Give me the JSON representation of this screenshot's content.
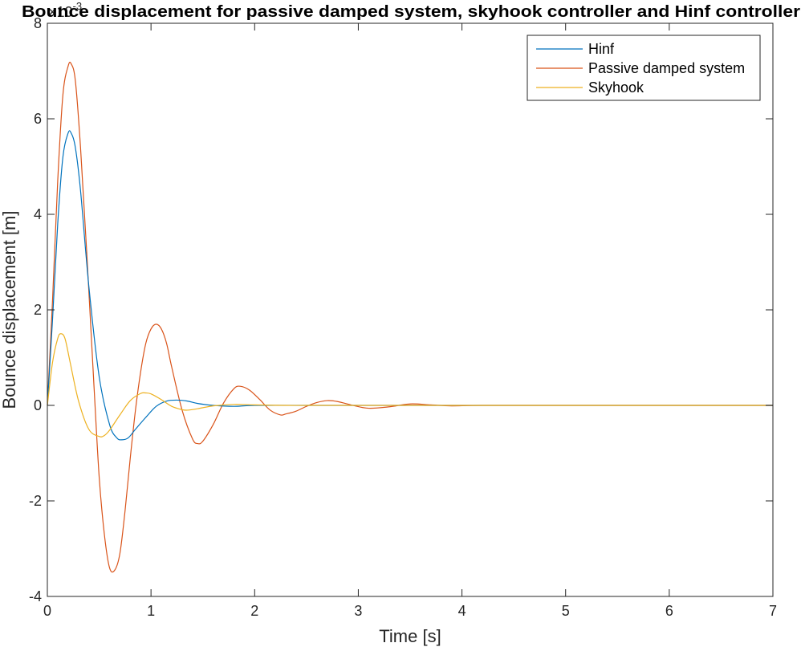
{
  "chart_data": {
    "type": "line",
    "title": "Bounce displacement for passive damped system, skyhook controller and Hinf controller",
    "xlabel": "Time [s]",
    "ylabel": "Bounce displacement [m]",
    "exponent_label": "×10",
    "exponent_power": "-3",
    "xlim": [
      0,
      7
    ],
    "ylim": [
      -0.004,
      0.008
    ],
    "x_ticks": [
      "0",
      "1",
      "2",
      "3",
      "4",
      "5",
      "6",
      "7"
    ],
    "y_ticks": [
      "-4",
      "-2",
      "0",
      "2",
      "4",
      "6",
      "8"
    ],
    "grid": false,
    "legend_position": "top-right",
    "series": [
      {
        "name": "Hinf",
        "color": "#0072BD",
        "x": [
          0,
          0.05,
          0.1,
          0.15,
          0.2,
          0.23,
          0.27,
          0.32,
          0.4,
          0.5,
          0.6,
          0.67,
          0.72,
          0.78,
          0.85,
          0.95,
          1.05,
          1.15,
          1.25,
          1.35,
          1.45,
          1.6,
          1.8,
          2.0,
          2.5,
          3.0,
          7.0
        ],
        "y": [
          0,
          0.0018,
          0.0038,
          0.0052,
          0.0057,
          0.0057,
          0.0054,
          0.0045,
          0.0025,
          0.0006,
          -0.0004,
          -0.00068,
          -0.00072,
          -0.00068,
          -0.0005,
          -0.00025,
          -2e-05,
          9e-05,
          0.00011,
          9e-05,
          4e-05,
          0.0,
          -2e-05,
          0.0,
          0.0,
          0.0,
          0.0
        ]
      },
      {
        "name": "Passive damped system",
        "color": "#D95319",
        "x": [
          0,
          0.05,
          0.1,
          0.15,
          0.2,
          0.23,
          0.27,
          0.32,
          0.38,
          0.45,
          0.5,
          0.55,
          0.6,
          0.65,
          0.7,
          0.75,
          0.8,
          0.85,
          0.9,
          0.95,
          1.0,
          1.05,
          1.1,
          1.15,
          1.2,
          1.3,
          1.4,
          1.45,
          1.5,
          1.6,
          1.7,
          1.8,
          1.86,
          1.95,
          2.05,
          2.15,
          2.25,
          2.3,
          2.4,
          2.5,
          2.6,
          2.7,
          2.8,
          2.95,
          3.1,
          3.3,
          3.5,
          3.7,
          3.9,
          4.2,
          5.0,
          7.0
        ],
        "y": [
          0,
          0.0022,
          0.0047,
          0.0065,
          0.0071,
          0.00715,
          0.0068,
          0.0054,
          0.0032,
          0.0004,
          -0.0015,
          -0.0027,
          -0.0034,
          -0.00345,
          -0.0031,
          -0.0022,
          -0.0011,
          -0.0001,
          0.0007,
          0.0013,
          0.0016,
          0.0017,
          0.0016,
          0.0013,
          0.0008,
          -0.0001,
          -0.0007,
          -0.0008,
          -0.00075,
          -0.0004,
          5e-05,
          0.00035,
          0.0004,
          0.00032,
          0.00012,
          -0.0001,
          -0.0002,
          -0.00018,
          -0.00012,
          -2e-05,
          6e-05,
          0.0001,
          8e-05,
          0.0,
          -6e-05,
          -3e-05,
          3e-05,
          1e-05,
          -1e-05,
          0.0,
          0.0,
          0.0
        ]
      },
      {
        "name": "Skyhook",
        "color": "#EDB120",
        "x": [
          0,
          0.05,
          0.1,
          0.13,
          0.17,
          0.22,
          0.3,
          0.4,
          0.5,
          0.55,
          0.6,
          0.7,
          0.8,
          0.9,
          0.95,
          1.0,
          1.1,
          1.2,
          1.3,
          1.35,
          1.45,
          1.6,
          1.8,
          2.0,
          2.3,
          2.6,
          3.0,
          7.0
        ],
        "y": [
          0,
          0.0009,
          0.0014,
          0.0015,
          0.0014,
          0.0009,
          0.0001,
          -0.0005,
          -0.00065,
          -0.00063,
          -0.00052,
          -0.0002,
          0.0001,
          0.00025,
          0.00026,
          0.00024,
          0.00012,
          -2e-05,
          -9e-05,
          -0.0001,
          -7e-05,
          -1e-05,
          2e-05,
          1e-05,
          0.0,
          0.0,
          0.0,
          0.0
        ]
      }
    ]
  }
}
